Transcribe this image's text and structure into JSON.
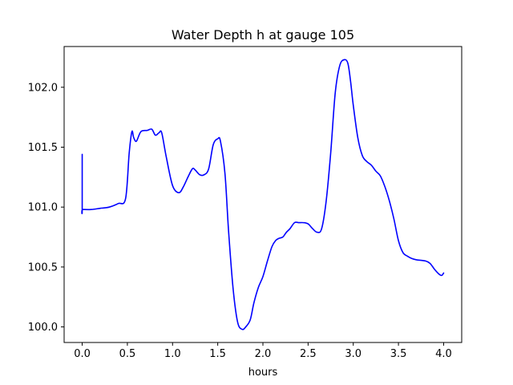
{
  "chart_data": {
    "type": "line",
    "title": "Water Depth h at gauge 105",
    "xlabel": "hours",
    "ylabel": "",
    "xlim": [
      -0.2,
      4.2
    ],
    "ylim": [
      99.87,
      102.34
    ],
    "xticks": [
      0.0,
      0.5,
      1.0,
      1.5,
      2.0,
      2.5,
      3.0,
      3.5,
      4.0
    ],
    "xtick_labels": [
      "0.0",
      "0.5",
      "1.0",
      "1.5",
      "2.0",
      "2.5",
      "3.0",
      "3.5",
      "4.0"
    ],
    "yticks": [
      100.0,
      100.5,
      101.0,
      101.5,
      102.0
    ],
    "ytick_labels": [
      "100.0",
      "100.5",
      "101.0",
      "101.5",
      "102.0"
    ],
    "grid": false,
    "series": [
      {
        "color": "#0000ff",
        "x": [
          0.0,
          0.0,
          0.005,
          0.1,
          0.2,
          0.3,
          0.4,
          0.48,
          0.52,
          0.55,
          0.57,
          0.6,
          0.65,
          0.72,
          0.77,
          0.81,
          0.85,
          0.88,
          0.93,
          1.0,
          1.07,
          1.12,
          1.17,
          1.22,
          1.25,
          1.3,
          1.35,
          1.4,
          1.45,
          1.5,
          1.53,
          1.58,
          1.62,
          1.67,
          1.72,
          1.77,
          1.81,
          1.86,
          1.9,
          1.95,
          2.0,
          2.05,
          2.1,
          2.14,
          2.18,
          2.22,
          2.26,
          2.3,
          2.35,
          2.4,
          2.45,
          2.5,
          2.55,
          2.6,
          2.65,
          2.7,
          2.75,
          2.8,
          2.85,
          2.9,
          2.94,
          2.97,
          3.0,
          3.05,
          3.1,
          3.15,
          3.2,
          3.25,
          3.3,
          3.35,
          3.4,
          3.45,
          3.5,
          3.55,
          3.6,
          3.65,
          3.7,
          3.8,
          3.85,
          3.9,
          3.95,
          3.98,
          4.0
        ],
        "y": [
          101.44,
          100.98,
          100.98,
          100.98,
          100.99,
          101.0,
          101.03,
          101.07,
          101.45,
          101.63,
          101.58,
          101.55,
          101.63,
          101.64,
          101.65,
          101.6,
          101.62,
          101.62,
          101.42,
          101.18,
          101.12,
          101.17,
          101.25,
          101.32,
          101.31,
          101.27,
          101.27,
          101.32,
          101.52,
          101.57,
          101.55,
          101.28,
          100.8,
          100.32,
          100.04,
          99.98,
          100.0,
          100.06,
          100.2,
          100.33,
          100.42,
          100.55,
          100.67,
          100.72,
          100.74,
          100.75,
          100.79,
          100.82,
          100.87,
          100.87,
          100.87,
          100.86,
          100.82,
          100.79,
          100.82,
          101.05,
          101.45,
          101.95,
          102.18,
          102.23,
          102.2,
          102.05,
          101.85,
          101.58,
          101.43,
          101.38,
          101.35,
          101.3,
          101.26,
          101.17,
          101.05,
          100.9,
          100.72,
          100.62,
          100.59,
          100.57,
          100.56,
          100.55,
          100.53,
          100.48,
          100.44,
          100.43,
          100.45
        ]
      }
    ]
  }
}
